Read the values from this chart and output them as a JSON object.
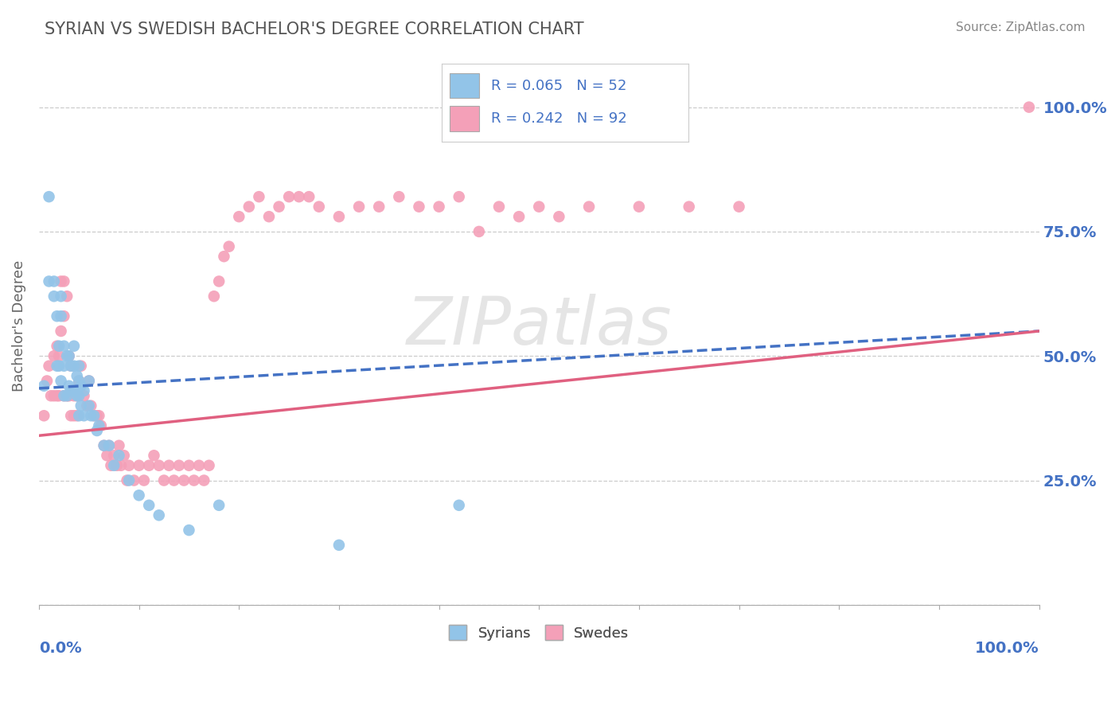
{
  "title": "SYRIAN VS SWEDISH BACHELOR'S DEGREE CORRELATION CHART",
  "source": "Source: ZipAtlas.com",
  "ylabel": "Bachelor's Degree",
  "watermark": "ZIPatlas",
  "legend_syrian_R": "R = 0.065",
  "legend_syrian_N": "N = 52",
  "legend_swedish_R": "R = 0.242",
  "legend_swedish_N": "N = 92",
  "syrian_color": "#92C4E8",
  "swedish_color": "#F4A0B8",
  "syrian_line_color": "#4472C4",
  "swedish_line_color": "#E06080",
  "background_color": "#FFFFFF",
  "grid_color": "#CCCCCC",
  "axis_label_color": "#4472C4",
  "title_color": "#555555",
  "source_color": "#888888",
  "syrians_x": [
    0.005,
    0.01,
    0.01,
    0.015,
    0.015,
    0.018,
    0.018,
    0.02,
    0.02,
    0.022,
    0.022,
    0.022,
    0.025,
    0.025,
    0.025,
    0.028,
    0.028,
    0.03,
    0.03,
    0.032,
    0.032,
    0.035,
    0.035,
    0.035,
    0.038,
    0.038,
    0.04,
    0.04,
    0.04,
    0.04,
    0.042,
    0.042,
    0.045,
    0.045,
    0.05,
    0.05,
    0.052,
    0.055,
    0.058,
    0.06,
    0.065,
    0.07,
    0.075,
    0.08,
    0.09,
    0.1,
    0.11,
    0.12,
    0.15,
    0.18,
    0.3,
    0.42
  ],
  "syrians_y": [
    0.44,
    0.82,
    0.65,
    0.65,
    0.62,
    0.58,
    0.48,
    0.52,
    0.48,
    0.62,
    0.58,
    0.45,
    0.52,
    0.48,
    0.42,
    0.5,
    0.42,
    0.5,
    0.44,
    0.48,
    0.43,
    0.52,
    0.48,
    0.43,
    0.46,
    0.42,
    0.48,
    0.45,
    0.42,
    0.38,
    0.44,
    0.4,
    0.43,
    0.38,
    0.45,
    0.4,
    0.38,
    0.38,
    0.35,
    0.36,
    0.32,
    0.32,
    0.28,
    0.3,
    0.25,
    0.22,
    0.2,
    0.18,
    0.15,
    0.2,
    0.12,
    0.2
  ],
  "swedes_x": [
    0.005,
    0.008,
    0.01,
    0.012,
    0.015,
    0.015,
    0.018,
    0.018,
    0.02,
    0.02,
    0.022,
    0.022,
    0.025,
    0.025,
    0.025,
    0.028,
    0.028,
    0.03,
    0.03,
    0.032,
    0.032,
    0.035,
    0.035,
    0.038,
    0.038,
    0.04,
    0.042,
    0.045,
    0.048,
    0.05,
    0.052,
    0.055,
    0.058,
    0.06,
    0.062,
    0.065,
    0.068,
    0.07,
    0.072,
    0.075,
    0.078,
    0.08,
    0.082,
    0.085,
    0.088,
    0.09,
    0.095,
    0.1,
    0.105,
    0.11,
    0.115,
    0.12,
    0.125,
    0.13,
    0.135,
    0.14,
    0.145,
    0.15,
    0.155,
    0.16,
    0.165,
    0.17,
    0.175,
    0.18,
    0.185,
    0.19,
    0.2,
    0.21,
    0.22,
    0.23,
    0.24,
    0.25,
    0.26,
    0.27,
    0.28,
    0.3,
    0.32,
    0.34,
    0.36,
    0.38,
    0.4,
    0.42,
    0.44,
    0.46,
    0.48,
    0.5,
    0.52,
    0.55,
    0.6,
    0.65,
    0.7,
    0.99
  ],
  "swedes_y": [
    0.38,
    0.45,
    0.48,
    0.42,
    0.5,
    0.42,
    0.52,
    0.42,
    0.5,
    0.42,
    0.65,
    0.55,
    0.65,
    0.58,
    0.42,
    0.62,
    0.42,
    0.5,
    0.42,
    0.48,
    0.38,
    0.42,
    0.38,
    0.42,
    0.38,
    0.45,
    0.48,
    0.42,
    0.4,
    0.45,
    0.4,
    0.38,
    0.38,
    0.38,
    0.36,
    0.32,
    0.3,
    0.32,
    0.28,
    0.3,
    0.28,
    0.32,
    0.28,
    0.3,
    0.25,
    0.28,
    0.25,
    0.28,
    0.25,
    0.28,
    0.3,
    0.28,
    0.25,
    0.28,
    0.25,
    0.28,
    0.25,
    0.28,
    0.25,
    0.28,
    0.25,
    0.28,
    0.62,
    0.65,
    0.7,
    0.72,
    0.78,
    0.8,
    0.82,
    0.78,
    0.8,
    0.82,
    0.82,
    0.82,
    0.8,
    0.78,
    0.8,
    0.8,
    0.82,
    0.8,
    0.8,
    0.82,
    0.75,
    0.8,
    0.78,
    0.8,
    0.78,
    0.8,
    0.8,
    0.8,
    0.8,
    1.0
  ],
  "ylim": [
    0.0,
    1.12
  ],
  "xlim": [
    0.0,
    1.0
  ],
  "yticks": [
    0.0,
    0.25,
    0.5,
    0.75,
    1.0
  ],
  "ytick_labels": [
    "",
    "25.0%",
    "50.0%",
    "75.0%",
    "100.0%"
  ],
  "syrian_trend_x0": 0.0,
  "syrian_trend_y0": 0.435,
  "syrian_trend_x1": 1.0,
  "syrian_trend_y1": 0.55,
  "swedish_trend_x0": 0.0,
  "swedish_trend_y0": 0.34,
  "swedish_trend_x1": 1.0,
  "swedish_trend_y1": 0.55
}
